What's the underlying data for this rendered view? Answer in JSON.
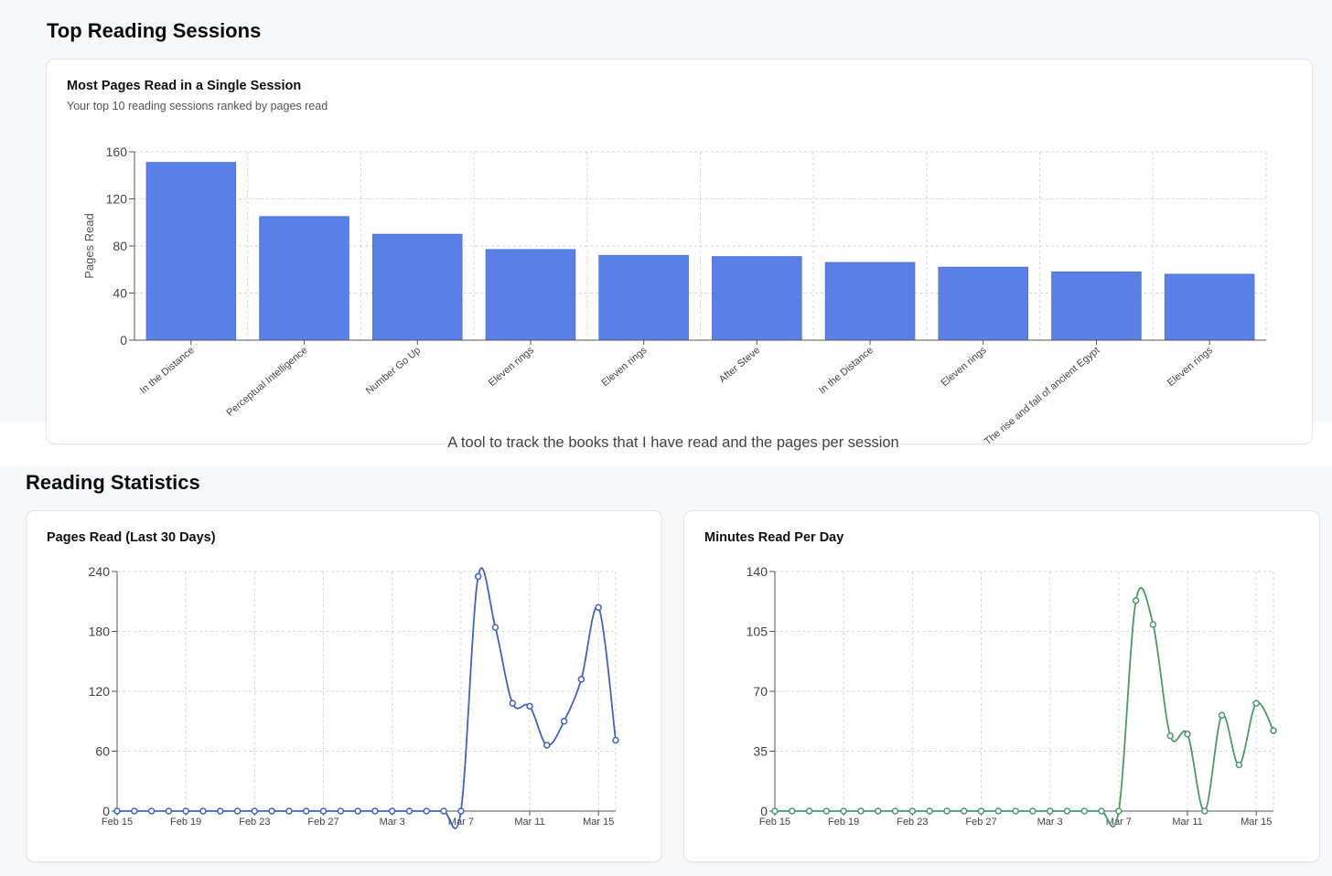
{
  "top_section": {
    "title": "Top Reading Sessions"
  },
  "sessions_card": {
    "title": "Most Pages Read in a Single Session",
    "subtitle": "Your top 10 reading sessions ranked by pages read"
  },
  "tagline": "A tool to track the books that I have read and the pages per session",
  "stats_section": {
    "title": "Reading Statistics"
  },
  "pages_card": {
    "title": "Pages Read (Last 30 Days)"
  },
  "minutes_card": {
    "title": "Minutes Read Per Day"
  },
  "chart_data": [
    {
      "type": "bar",
      "title": "Most Pages Read in a Single Session",
      "ylabel": "Pages Read",
      "xlabel": "",
      "ylim": [
        0,
        160
      ],
      "yticks": [
        0,
        40,
        80,
        120,
        160
      ],
      "grid": true,
      "color": "#5a7fe6",
      "categories": [
        "In the Distance",
        "Perceptual Intelligence",
        "Number Go Up",
        "Eleven rings",
        "Eleven rings",
        "After Steve",
        "In the Distance",
        "Eleven rings",
        "The rise and fall of ancient Egypt",
        "Eleven rings"
      ],
      "values": [
        151,
        105,
        90,
        77,
        72,
        71,
        66,
        62,
        58,
        56
      ]
    },
    {
      "type": "line",
      "title": "Pages Read (Last 30 Days)",
      "ylim": [
        0,
        240
      ],
      "yticks": [
        0,
        60,
        120,
        180,
        240
      ],
      "xtick_labels": [
        "Feb 15",
        "Feb 19",
        "Feb 23",
        "Feb 27",
        "Mar 3",
        "Mar 7",
        "Mar 11",
        "Mar 15"
      ],
      "grid": true,
      "color": "#3f63c9",
      "x": [
        "Feb 15",
        "Feb 16",
        "Feb 17",
        "Feb 18",
        "Feb 19",
        "Feb 20",
        "Feb 21",
        "Feb 22",
        "Feb 23",
        "Feb 24",
        "Feb 25",
        "Feb 26",
        "Feb 27",
        "Feb 28",
        "Mar 1",
        "Mar 2",
        "Mar 3",
        "Mar 4",
        "Mar 5",
        "Mar 6",
        "Mar 7",
        "Mar 8",
        "Mar 9",
        "Mar 10",
        "Mar 11",
        "Mar 12",
        "Mar 13",
        "Mar 14",
        "Mar 15",
        "Mar 16"
      ],
      "values": [
        0,
        0,
        0,
        0,
        0,
        0,
        0,
        0,
        0,
        0,
        0,
        0,
        0,
        0,
        0,
        0,
        0,
        0,
        0,
        0,
        0,
        235,
        184,
        108,
        105,
        66,
        90,
        132,
        204,
        71
      ]
    },
    {
      "type": "line",
      "title": "Minutes Read Per Day",
      "ylim": [
        0,
        140
      ],
      "yticks": [
        0,
        35,
        70,
        105,
        140
      ],
      "xtick_labels": [
        "Feb 15",
        "Feb 19",
        "Feb 23",
        "Feb 27",
        "Mar 3",
        "Mar 7",
        "Mar 11",
        "Mar 15"
      ],
      "grid": true,
      "color": "#4a9a6a",
      "x": [
        "Feb 15",
        "Feb 16",
        "Feb 17",
        "Feb 18",
        "Feb 19",
        "Feb 20",
        "Feb 21",
        "Feb 22",
        "Feb 23",
        "Feb 24",
        "Feb 25",
        "Feb 26",
        "Feb 27",
        "Feb 28",
        "Mar 1",
        "Mar 2",
        "Mar 3",
        "Mar 4",
        "Mar 5",
        "Mar 6",
        "Mar 7",
        "Mar 8",
        "Mar 9",
        "Mar 10",
        "Mar 11",
        "Mar 12",
        "Mar 13",
        "Mar 14",
        "Mar 15",
        "Mar 16"
      ],
      "values": [
        0,
        0,
        0,
        0,
        0,
        0,
        0,
        0,
        0,
        0,
        0,
        0,
        0,
        0,
        0,
        0,
        0,
        0,
        0,
        0,
        0,
        123,
        109,
        44,
        45,
        0,
        56,
        27,
        63,
        47
      ]
    }
  ]
}
